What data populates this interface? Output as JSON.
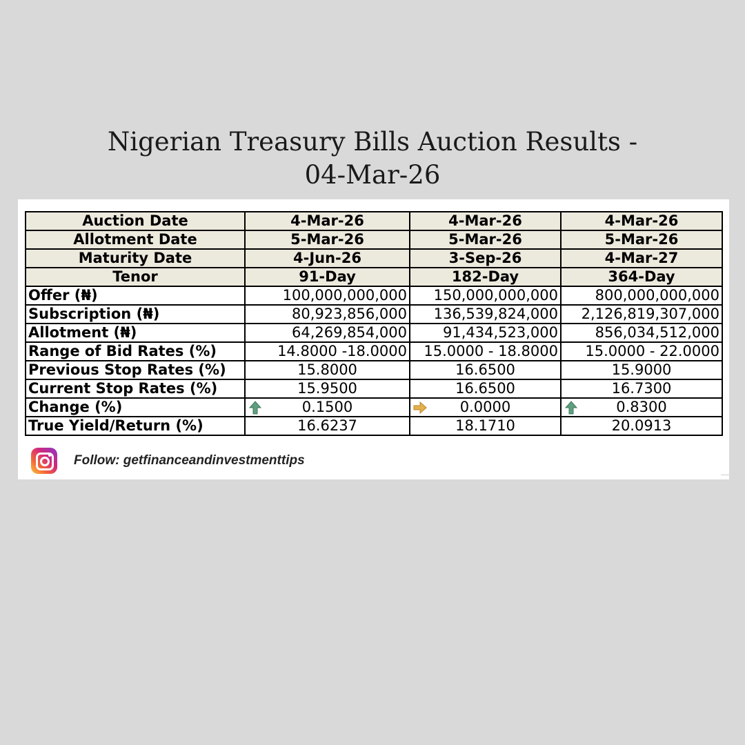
{
  "title_line1": "Nigerian Treasury Bills Auction Results -",
  "title_line2": "04-Mar-26",
  "table": {
    "header_rows": [
      {
        "label": "Auction Date",
        "values": [
          "4-Mar-26",
          "4-Mar-26",
          "4-Mar-26"
        ]
      },
      {
        "label": "Allotment Date",
        "values": [
          "5-Mar-26",
          "5-Mar-26",
          "5-Mar-26"
        ]
      },
      {
        "label": "Maturity Date",
        "values": [
          "4-Jun-26",
          "3-Sep-26",
          "4-Mar-27"
        ]
      },
      {
        "label": "Tenor",
        "values": [
          "91-Day",
          "182-Day",
          "364-Day"
        ]
      }
    ],
    "offer": {
      "label": "Offer (₦)",
      "values": [
        "100,000,000,000",
        "150,000,000,000",
        "800,000,000,000"
      ]
    },
    "subscription": {
      "label": "Subscription (₦)",
      "values": [
        "80,923,856,000",
        "136,539,824,000",
        "2,126,819,307,000"
      ]
    },
    "allotment": {
      "label": "Allotment (₦)",
      "values": [
        "64,269,854,000",
        "91,434,523,000",
        "856,034,512,000"
      ]
    },
    "range": {
      "label": "Range of Bid Rates (%)",
      "values": [
        "14.8000 -18.0000",
        "15.0000 - 18.8000",
        "15.0000 - 22.0000"
      ]
    },
    "previous": {
      "label": "Previous Stop Rates (%)",
      "values": [
        "15.8000",
        "16.6500",
        "15.9000"
      ]
    },
    "current": {
      "label": "Current Stop Rates (%)",
      "values": [
        "15.9500",
        "16.6500",
        "16.7300"
      ]
    },
    "change": {
      "label": "Change (%)",
      "values": [
        "0.1500",
        "0.0000",
        "0.8300"
      ],
      "indicators": [
        "up-arrow-icon",
        "right-arrow-icon",
        "up-arrow-icon"
      ],
      "indicator_colors": {
        "up": "#5f9e7f",
        "flat": "#e3b04b"
      }
    },
    "yield": {
      "label": "True Yield/Return (%)",
      "values": [
        "16.6237",
        "18.1710",
        "20.0913"
      ]
    }
  },
  "follow": {
    "text": "Follow: getfinanceandinvestmenttips",
    "icon": "instagram-icon"
  },
  "colors": {
    "background": "#d9d9d9",
    "header_fill": "#ece9dd",
    "card": "#ffffff"
  }
}
